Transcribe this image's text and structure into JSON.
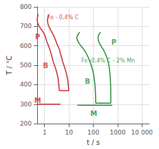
{
  "chart_data": {
    "type": "line",
    "xlabel": "t / s",
    "ylabel": "T / °C",
    "log": "x",
    "grid": true,
    "xlim": [
      0.5,
      20000
    ],
    "xticks": [
      1,
      10,
      100,
      1000,
      {
        "value": 10000,
        "label": "10 000"
      }
    ],
    "ylim": [
      200,
      800
    ],
    "yticks": [
      200,
      300,
      400,
      500,
      600,
      700,
      800
    ],
    "series": [
      {
        "color": "#cc2222",
        "x": [
          0.55,
          0.52,
          0.5,
          0.5,
          0.52,
          0.55,
          0.6,
          0.68,
          0.78,
          0.88,
          0.98,
          1.05,
          1.12,
          1.18,
          1.25,
          1.35,
          1.45,
          1.55,
          1.65,
          1.85,
          2.05,
          2.25,
          2.55,
          2.9,
          3.2,
          3.5,
          3.7,
          3.85,
          3.95,
          4.0
        ],
        "values": [
          760,
          750,
          740,
          730,
          720,
          710,
          700,
          690,
          680,
          670,
          660,
          650,
          640,
          630,
          620,
          610,
          600,
          590,
          580,
          560,
          540,
          520,
          500,
          480,
          460,
          440,
          420,
          400,
          380,
          370
        ]
      },
      {
        "color": "#cc2222",
        "x": [
          1.5,
          1.4,
          1.35,
          1.3,
          1.35,
          1.4,
          1.5,
          1.65,
          1.8,
          2.0,
          2.2,
          2.4,
          2.6,
          2.8,
          3.0,
          3.2,
          3.5,
          3.8,
          4.1,
          4.5,
          5.0,
          5.5,
          6.2,
          7.0,
          7.8,
          8.5,
          9.0,
          9.4,
          9.7,
          9.9
        ],
        "values": [
          760,
          750,
          740,
          730,
          720,
          710,
          700,
          690,
          680,
          670,
          660,
          650,
          640,
          630,
          620,
          610,
          600,
          590,
          580,
          560,
          540,
          520,
          500,
          480,
          460,
          440,
          420,
          400,
          380,
          370
        ]
      },
      {
        "color": "#cc2222",
        "x": [
          4.0,
          9.9
        ],
        "values": [
          370,
          370
        ]
      },
      {
        "color": "#cc2222",
        "x": [
          0.5,
          4.5
        ],
        "values": [
          300,
          300
        ]
      },
      {
        "color": "#228833",
        "x": [
          28,
          24,
          22,
          21,
          22,
          24,
          27,
          31,
          36,
          42,
          52,
          62,
          72,
          82,
          92,
          100,
          107,
          112,
          117,
          120,
          122,
          124,
          125,
          126
        ],
        "values": [
          670,
          660,
          650,
          640,
          630,
          620,
          610,
          600,
          590,
          580,
          560,
          540,
          520,
          500,
          480,
          460,
          440,
          420,
          400,
          380,
          360,
          340,
          320,
          305
        ]
      },
      {
        "color": "#228833",
        "x": [
          200,
          175,
          160,
          155,
          160,
          170,
          185,
          205,
          230,
          260,
          310,
          360,
          400,
          435,
          460,
          480,
          495,
          505,
          512,
          517,
          520,
          522,
          523,
          524
        ],
        "values": [
          670,
          660,
          650,
          640,
          630,
          620,
          610,
          600,
          590,
          580,
          560,
          540,
          520,
          500,
          480,
          460,
          440,
          420,
          400,
          380,
          360,
          340,
          320,
          305
        ]
      },
      {
        "color": "#228833",
        "x": [
          126,
          524
        ],
        "values": [
          305,
          305
        ]
      },
      {
        "color": "#228833",
        "x": [
          22,
          600
        ],
        "values": [
          295,
          295
        ]
      }
    ],
    "annotations": [
      {
        "text": "Fe - 0,4% C",
        "x": 1.3,
        "y": 745,
        "color": "#cc2222"
      },
      {
        "text": "Fe -0,4% C - 2% Mn",
        "x": 32,
        "y": 522,
        "color": "#228833"
      },
      {
        "text": "P",
        "x": 0.52,
        "y": 648,
        "color": "#cc2222"
      },
      {
        "text": "B",
        "x": 1.1,
        "y": 498,
        "color": "#cc2222"
      },
      {
        "text": "M",
        "x": 0.52,
        "y": 318,
        "color": "#cc2222"
      },
      {
        "text": "P",
        "x": 700,
        "y": 618,
        "color": "#228833"
      },
      {
        "text": "B",
        "x": 58,
        "y": 418,
        "color": "#228833"
      },
      {
        "text": "M",
        "x": 105,
        "y": 253,
        "color": "#228833"
      }
    ]
  }
}
